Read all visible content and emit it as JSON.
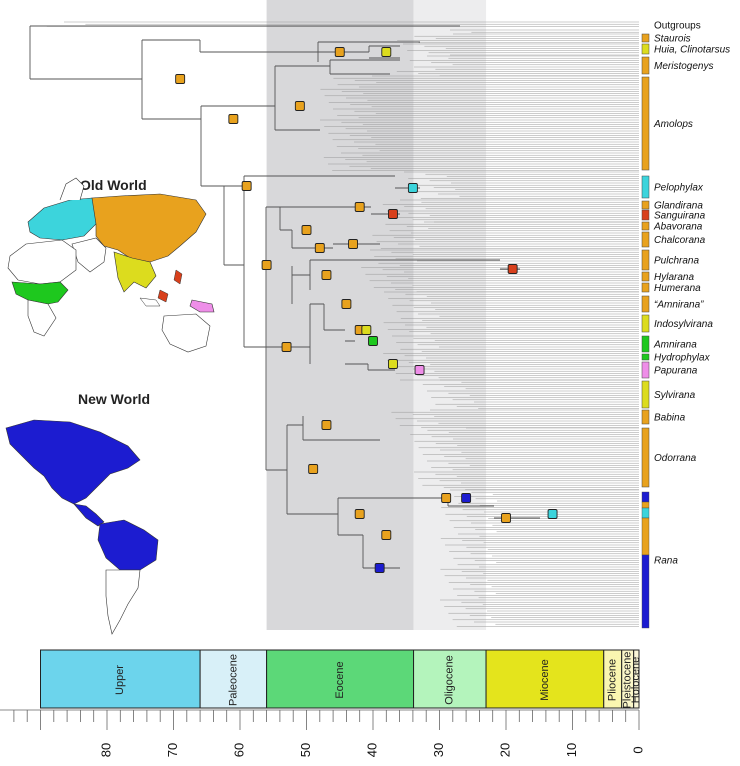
{
  "colors": {
    "orange": "#E8A21E",
    "yellow": "#DCDC1E",
    "cyan": "#3CD4DC",
    "red": "#D8401C",
    "green": "#1EC81E",
    "pink": "#EE8EE8",
    "blue": "#1C1CD0",
    "tree": "#555555"
  },
  "maps": {
    "old_world_title": "Old World",
    "new_world_title": "New World"
  },
  "clades": [
    {
      "label": "Outgroups",
      "italic": false,
      "color": null,
      "y_range": [
        22,
        28
      ]
    },
    {
      "label": "Staurois",
      "italic": true,
      "color": "orange",
      "y_range": [
        34,
        42
      ]
    },
    {
      "label": "Huia, Clinotarsus",
      "italic": true,
      "color": "yellow",
      "y_range": [
        44,
        54
      ]
    },
    {
      "label": "Meristogenys",
      "italic": true,
      "color": "orange",
      "y_range": [
        57,
        74
      ]
    },
    {
      "label": "Amolops",
      "italic": true,
      "color": "orange",
      "y_range": [
        77,
        170
      ]
    },
    {
      "label": "Pelophylax",
      "italic": true,
      "color": "cyan",
      "y_range": [
        176,
        198
      ]
    },
    {
      "label": "Glandirana",
      "italic": true,
      "color": "orange",
      "y_range": [
        201,
        209
      ]
    },
    {
      "label": "Sanguirana",
      "italic": true,
      "color": "red",
      "y_range": [
        210,
        220
      ]
    },
    {
      "label": "Abavorana",
      "italic": true,
      "color": "orange",
      "y_range": [
        222,
        230
      ]
    },
    {
      "label": "Chalcorana",
      "italic": true,
      "color": "orange",
      "y_range": [
        232,
        247
      ]
    },
    {
      "label": "Pulchrana",
      "italic": true,
      "color": "orange",
      "y_range": [
        250,
        270
      ]
    },
    {
      "label": "Hylarana",
      "italic": true,
      "color": "orange",
      "y_range": [
        272,
        281
      ]
    },
    {
      "label": "Humerana",
      "italic": true,
      "color": "orange",
      "y_range": [
        283,
        292
      ]
    },
    {
      "label": "“Amnirana”",
      "italic": true,
      "color": "orange",
      "y_range": [
        296,
        312
      ]
    },
    {
      "label": "Indosylvirana",
      "italic": true,
      "color": "yellow",
      "y_range": [
        315,
        332
      ]
    },
    {
      "label": "Amnirana",
      "italic": true,
      "color": "green",
      "y_range": [
        336,
        352
      ]
    },
    {
      "label": "Hydrophylax",
      "italic": true,
      "color": "green",
      "y_range": [
        354,
        360
      ]
    },
    {
      "label": "Papurana",
      "italic": true,
      "color": "pink",
      "y_range": [
        362,
        378
      ]
    },
    {
      "label": "Sylvirana",
      "italic": true,
      "color": "yellow",
      "y_range": [
        381,
        408
      ]
    },
    {
      "label": "Babina",
      "italic": true,
      "color": "orange",
      "y_range": [
        410,
        424
      ]
    },
    {
      "label": "Odorrana",
      "italic": true,
      "color": "orange",
      "y_range": [
        428,
        487
      ]
    },
    {
      "label": "Rana",
      "italic": true,
      "color": "mixed",
      "y_range": [
        492,
        628
      ]
    }
  ],
  "rana_bar": [
    {
      "color": "blue",
      "range": [
        492,
        502
      ]
    },
    {
      "color": "orange",
      "range": [
        502,
        508
      ]
    },
    {
      "color": "cyan",
      "range": [
        508,
        518
      ]
    },
    {
      "color": "orange",
      "range": [
        518,
        555
      ]
    },
    {
      "color": "blue",
      "range": [
        555,
        628
      ]
    }
  ],
  "nodes": [
    {
      "age": 69,
      "y": 79,
      "color": "orange"
    },
    {
      "age": 45,
      "y": 52,
      "color": "orange"
    },
    {
      "age": 38,
      "y": 52,
      "color": "yellow"
    },
    {
      "age": 61,
      "y": 119,
      "color": "orange"
    },
    {
      "age": 51,
      "y": 106,
      "color": "orange"
    },
    {
      "age": 59,
      "y": 186,
      "color": "orange"
    },
    {
      "age": 56,
      "y": 265,
      "color": "orange"
    },
    {
      "age": 34,
      "y": 188,
      "color": "cyan"
    },
    {
      "age": 42,
      "y": 207,
      "color": "orange"
    },
    {
      "age": 37,
      "y": 214,
      "color": "red"
    },
    {
      "age": 50,
      "y": 230,
      "color": "orange"
    },
    {
      "age": 48,
      "y": 248,
      "color": "orange"
    },
    {
      "age": 43,
      "y": 244,
      "color": "orange"
    },
    {
      "age": 47,
      "y": 275,
      "color": "orange"
    },
    {
      "age": 19,
      "y": 269,
      "color": "red"
    },
    {
      "age": 44,
      "y": 304,
      "color": "orange"
    },
    {
      "age": 42,
      "y": 330,
      "color": "orange"
    },
    {
      "age": 41,
      "y": 330,
      "color": "yellow"
    },
    {
      "age": 40,
      "y": 341,
      "color": "green"
    },
    {
      "age": 37,
      "y": 364,
      "color": "yellow"
    },
    {
      "age": 33,
      "y": 370,
      "color": "pink"
    },
    {
      "age": 53,
      "y": 347,
      "color": "orange"
    },
    {
      "age": 47,
      "y": 425,
      "color": "orange"
    },
    {
      "age": 49,
      "y": 469,
      "color": "orange"
    },
    {
      "age": 42,
      "y": 514,
      "color": "orange"
    },
    {
      "age": 29,
      "y": 498,
      "color": "orange"
    },
    {
      "age": 26,
      "y": 498,
      "color": "blue"
    },
    {
      "age": 20,
      "y": 518,
      "color": "orange"
    },
    {
      "age": 13,
      "y": 514,
      "color": "cyan"
    },
    {
      "age": 38,
      "y": 535,
      "color": "orange"
    },
    {
      "age": 39,
      "y": 568,
      "color": "blue"
    }
  ],
  "timescale": {
    "epochs": [
      {
        "name": "Upper",
        "start": 90,
        "end": 66,
        "color": "#6CD4EC"
      },
      {
        "name": "Paleocene",
        "start": 66,
        "end": 56,
        "color": "#D8F0F8"
      },
      {
        "name": "Eocene",
        "start": 56,
        "end": 33.9,
        "color": "#5CD878"
      },
      {
        "name": "Oligocene",
        "start": 33.9,
        "end": 23,
        "color": "#B4F4BC"
      },
      {
        "name": "Miocene",
        "start": 23,
        "end": 5.3,
        "color": "#E4E41C"
      },
      {
        "name": "Pliocene",
        "start": 5.3,
        "end": 2.6,
        "color": "#FAF6B0"
      },
      {
        "name": "Pleistocene",
        "start": 2.6,
        "end": 0.8,
        "color": "#FAF6C8"
      },
      {
        "name": "Holocene",
        "start": 0.8,
        "end": 0,
        "color": "#FAF6D8"
      }
    ],
    "tick_labels": [
      80,
      70,
      60,
      50,
      40,
      30,
      20,
      10,
      0
    ],
    "shaded_bands": [
      {
        "start": 56,
        "end": 33.9,
        "color": "#D8D8DA"
      },
      {
        "start": 33.9,
        "end": 23,
        "color": "#EDEDEE"
      }
    ]
  }
}
